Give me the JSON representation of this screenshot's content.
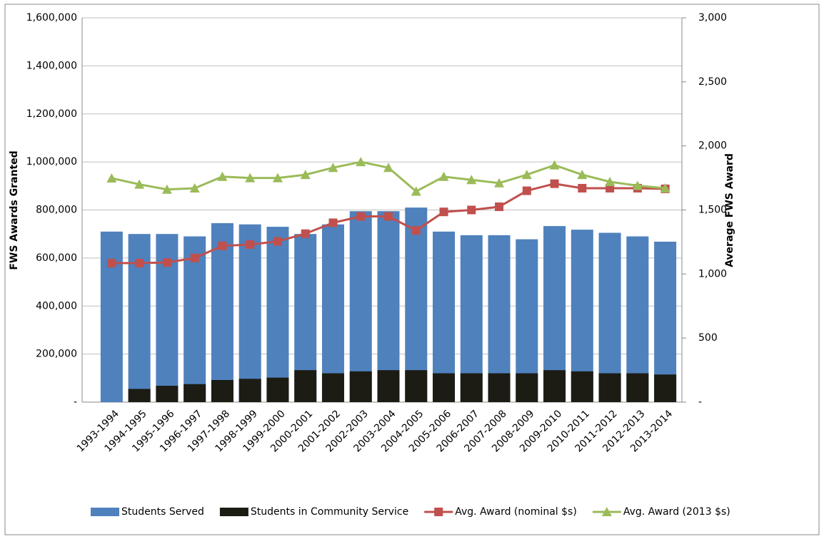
{
  "chart_data": {
    "type": "bar_line",
    "y_label": "FWS Awards Granted",
    "y2_label": "Average FWS Award",
    "categories": [
      "1993-1994",
      "1994-1995",
      "1995-1996",
      "1996-1997",
      "1997-1998",
      "1998-1999",
      "1999-2000",
      "2000-2001",
      "2001-2002",
      "2002-2003",
      "2003-2004",
      "2004-2005",
      "2005-2006",
      "2006-2007",
      "2007-2008",
      "2008-2009",
      "2009-2010",
      "2010-2011",
      "2011-2012",
      "2012-2013",
      "2013-2014"
    ],
    "series": [
      {
        "name": "Students Served",
        "color": "#4f81bd",
        "kind": "bar",
        "values": [
          710000,
          700000,
          700000,
          690000,
          745000,
          740000,
          730000,
          700000,
          740000,
          795000,
          795000,
          810000,
          710000,
          695000,
          695000,
          678000,
          733000,
          718000,
          705000,
          690000,
          668000
        ]
      },
      {
        "name": "Students in Community Service",
        "color": "#1c1c14",
        "kind": "bar",
        "values": [
          null,
          55000,
          68000,
          75000,
          92000,
          97000,
          102000,
          133000,
          120000,
          128000,
          133000,
          133000,
          120000,
          120000,
          120000,
          120000,
          133000,
          128000,
          120000,
          120000,
          115000
        ]
      },
      {
        "name": "Avg. Award (nominal $s)",
        "color": "#c0504d",
        "kind": "line",
        "marker": "square",
        "axis": "y2",
        "values": [
          1085,
          1085,
          1090,
          1125,
          1220,
          1230,
          1255,
          1315,
          1400,
          1450,
          1450,
          1340,
          1485,
          1500,
          1525,
          1650,
          1705,
          1670,
          1670,
          1670,
          1665
        ]
      },
      {
        "name": "Avg. Award (2013 $s)",
        "color": "#9bbb59",
        "kind": "line",
        "marker": "triangle",
        "axis": "y2",
        "values": [
          1748,
          1700,
          1660,
          1670,
          1760,
          1750,
          1750,
          1775,
          1830,
          1875,
          1830,
          1645,
          1760,
          1735,
          1710,
          1775,
          1850,
          1775,
          1720,
          1690,
          1670
        ]
      }
    ],
    "ylim": [
      0,
      1600000
    ],
    "yticks": [
      {
        "value": 0,
        "label": "-"
      },
      {
        "value": 200000,
        "label": "200,000"
      },
      {
        "value": 400000,
        "label": "400,000"
      },
      {
        "value": 600000,
        "label": "600,000"
      },
      {
        "value": 800000,
        "label": "800,000"
      },
      {
        "value": 1000000,
        "label": "1,000,000"
      },
      {
        "value": 1200000,
        "label": "1,200,000"
      },
      {
        "value": 1400000,
        "label": "1,400,000"
      },
      {
        "value": 1600000,
        "label": "1,600,000"
      }
    ],
    "y2lim": [
      0,
      3000
    ],
    "y2ticks": [
      {
        "value": 0,
        "label": "-"
      },
      {
        "value": 500,
        "label": "500"
      },
      {
        "value": 1000,
        "label": "1,000"
      },
      {
        "value": 1500,
        "label": "1,500"
      },
      {
        "value": 2000,
        "label": "2,000"
      },
      {
        "value": 2500,
        "label": "2,500"
      },
      {
        "value": 3000,
        "label": "3,000"
      }
    ],
    "grid": true,
    "legend": "bottom"
  }
}
